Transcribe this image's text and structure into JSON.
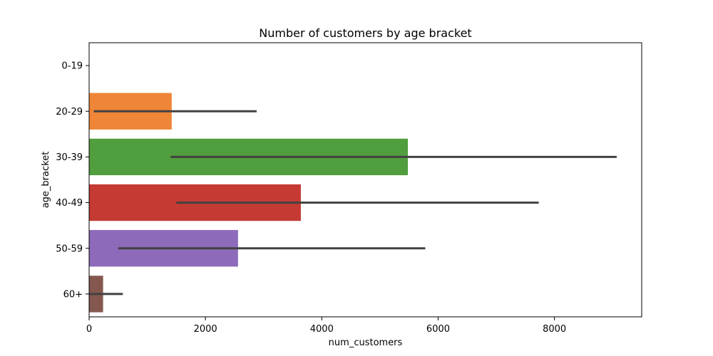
{
  "chart_data": {
    "type": "bar",
    "orientation": "horizontal",
    "title": "Number of customers by age bracket",
    "xlabel": "num_customers",
    "ylabel": "age_bracket",
    "xlim": [
      0,
      9500
    ],
    "xticks": [
      0,
      2000,
      4000,
      6000,
      8000
    ],
    "grid": false,
    "categories": [
      "0-19",
      "20-29",
      "30-39",
      "40-49",
      "50-59",
      "60+"
    ],
    "values": [
      0,
      1420,
      5480,
      3640,
      2560,
      240
    ],
    "error_low": [
      0,
      80,
      1400,
      1500,
      500,
      0
    ],
    "error_high": [
      0,
      2880,
      9070,
      7730,
      5780,
      580
    ],
    "colors": [
      "#3a76af",
      "#ef8536",
      "#519e3e",
      "#c53a32",
      "#8d6aba",
      "#84584e"
    ],
    "error_color": "#424242"
  }
}
